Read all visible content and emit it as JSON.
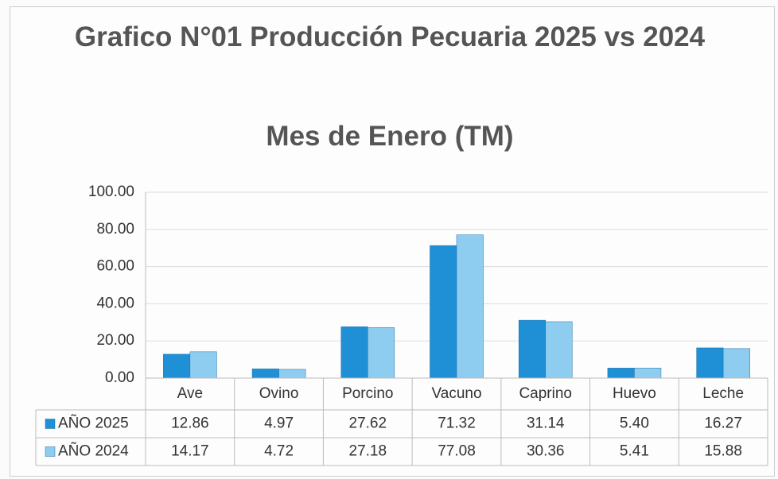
{
  "chart_data": {
    "type": "bar",
    "title": "Grafico  N°01 Producción Pecuaria 2025 vs 2024",
    "subtitle": "Mes de  Enero (TM)",
    "categories": [
      "Ave",
      "Ovino",
      "Porcino",
      "Vacuno",
      "Caprino",
      "Huevo",
      "Leche"
    ],
    "series": [
      {
        "name": "AÑO 2025",
        "color": "#1f8fd6",
        "values": [
          12.86,
          4.97,
          27.62,
          71.32,
          31.14,
          5.4,
          16.27
        ],
        "value_labels": [
          "12.86",
          "4.97",
          "27.62",
          "71.32",
          "31.14",
          "5.40",
          "16.27"
        ]
      },
      {
        "name": "AÑO 2024",
        "color": "#8fcdf0",
        "values": [
          14.17,
          4.72,
          27.18,
          77.08,
          30.36,
          5.41,
          15.88
        ],
        "value_labels": [
          "14.17",
          "4.72",
          "27.18",
          "77.08",
          "30.36",
          "5.41",
          "15.88"
        ]
      }
    ],
    "ylim": [
      0,
      100
    ],
    "yticks": [
      {
        "value": 0,
        "label": "0.00"
      },
      {
        "value": 20,
        "label": "20.00"
      },
      {
        "value": 40,
        "label": "40.00"
      },
      {
        "value": 60,
        "label": "60.00"
      },
      {
        "value": 80,
        "label": "80.00"
      },
      {
        "value": 100,
        "label": "100.00"
      }
    ],
    "grid": true
  }
}
